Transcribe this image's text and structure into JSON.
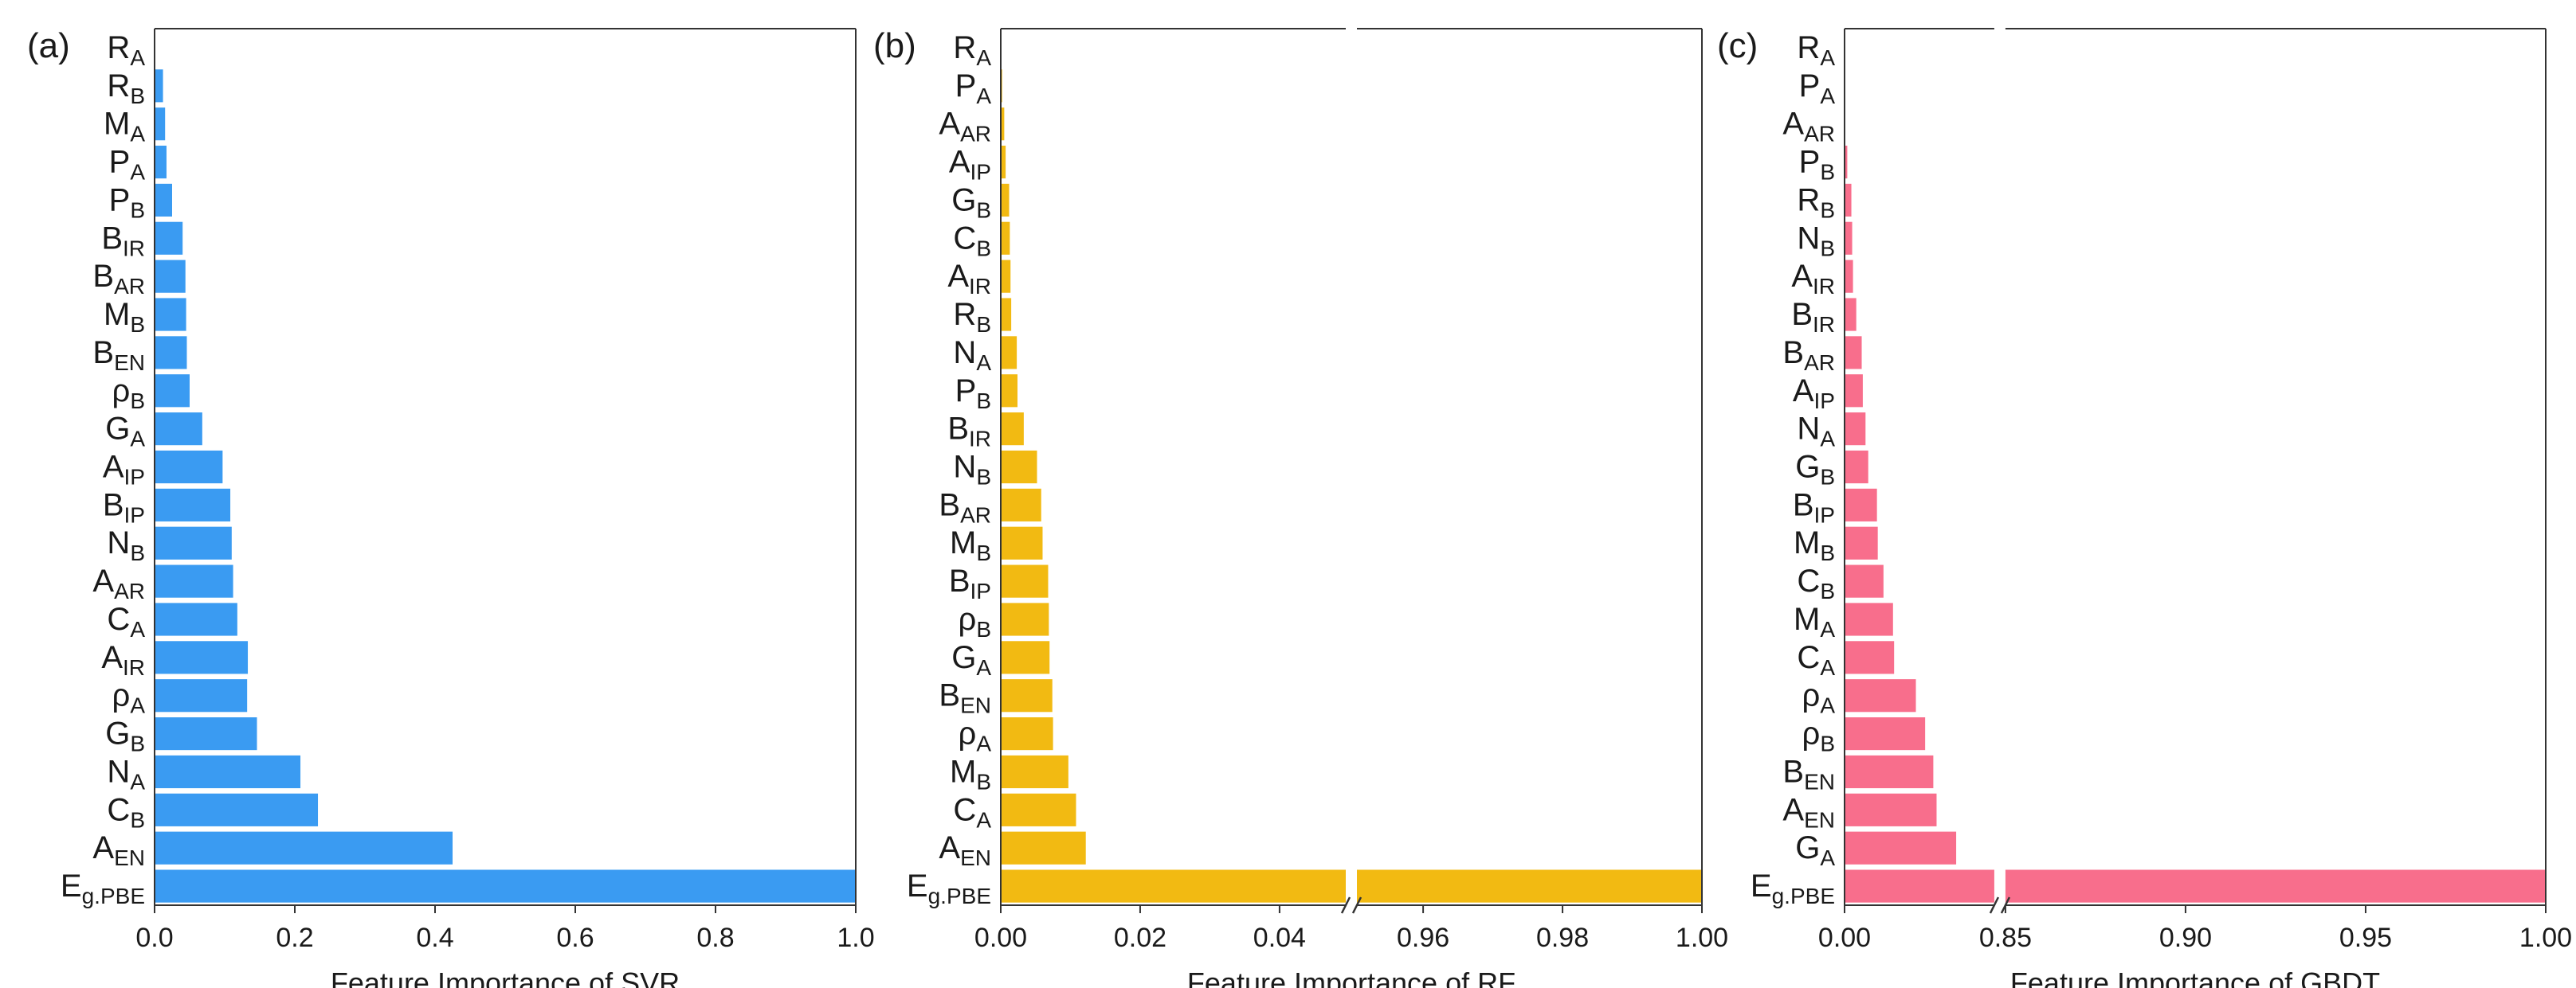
{
  "chart_data": [
    {
      "type": "bar",
      "orientation": "horizontal",
      "panel": "(a)",
      "xlabel": "Feature Importance of SVR",
      "color": "#3A9BF2",
      "categories": [
        {
          "base": "R",
          "sub": "A"
        },
        {
          "base": "R",
          "sub": "B"
        },
        {
          "base": "M",
          "sub": "A"
        },
        {
          "base": "P",
          "sub": "A"
        },
        {
          "base": "P",
          "sub": "B"
        },
        {
          "base": "B",
          "sub": "IR"
        },
        {
          "base": "B",
          "sub": "AR"
        },
        {
          "base": "M",
          "sub": "B"
        },
        {
          "base": "B",
          "sub": "EN"
        },
        {
          "base": "ρ",
          "sub": "B"
        },
        {
          "base": "G",
          "sub": "A"
        },
        {
          "base": "A",
          "sub": "IP"
        },
        {
          "base": "B",
          "sub": "IP"
        },
        {
          "base": "N",
          "sub": "B"
        },
        {
          "base": "A",
          "sub": "AR"
        },
        {
          "base": "C",
          "sub": "A"
        },
        {
          "base": "A",
          "sub": "IR"
        },
        {
          "base": "ρ",
          "sub": "A"
        },
        {
          "base": "G",
          "sub": "B"
        },
        {
          "base": "N",
          "sub": "A"
        },
        {
          "base": "C",
          "sub": "B"
        },
        {
          "base": "A",
          "sub": "EN"
        },
        {
          "base": "E",
          "sub": "g.PBE"
        }
      ],
      "values": [
        0.0,
        0.012,
        0.015,
        0.017,
        0.025,
        0.04,
        0.044,
        0.045,
        0.046,
        0.05,
        0.068,
        0.097,
        0.108,
        0.11,
        0.112,
        0.118,
        0.133,
        0.132,
        0.146,
        0.208,
        0.233,
        0.425,
        1.0
      ],
      "axis": {
        "segments": [
          {
            "lo": 0.0,
            "hi": 1.0,
            "frac": 1.0
          }
        ],
        "ticks": [
          {
            "v": 0.0,
            "label": "0.0"
          },
          {
            "v": 0.2,
            "label": "0.2"
          },
          {
            "v": 0.4,
            "label": "0.4"
          },
          {
            "v": 0.6,
            "label": "0.6"
          },
          {
            "v": 0.8,
            "label": "0.8"
          },
          {
            "v": 1.0,
            "label": "1.0"
          }
        ]
      }
    },
    {
      "type": "bar",
      "orientation": "horizontal",
      "panel": "(b)",
      "xlabel": "Feature Importance of RF",
      "color": "#F2BA12",
      "categories": [
        {
          "base": "R",
          "sub": "A"
        },
        {
          "base": "P",
          "sub": "A"
        },
        {
          "base": "A",
          "sub": "AR"
        },
        {
          "base": "A",
          "sub": "IP"
        },
        {
          "base": "G",
          "sub": "B"
        },
        {
          "base": "C",
          "sub": "B"
        },
        {
          "base": "A",
          "sub": "IR"
        },
        {
          "base": "R",
          "sub": "B"
        },
        {
          "base": "N",
          "sub": "A"
        },
        {
          "base": "P",
          "sub": "B"
        },
        {
          "base": "B",
          "sub": "IR"
        },
        {
          "base": "N",
          "sub": "B"
        },
        {
          "base": "B",
          "sub": "AR"
        },
        {
          "base": "M",
          "sub": "B"
        },
        {
          "base": "B",
          "sub": "IP"
        },
        {
          "base": "ρ",
          "sub": "B"
        },
        {
          "base": "G",
          "sub": "A"
        },
        {
          "base": "B",
          "sub": "EN"
        },
        {
          "base": "ρ",
          "sub": "A"
        },
        {
          "base": "M",
          "sub": "B"
        },
        {
          "base": "C",
          "sub": "A"
        },
        {
          "base": "A",
          "sub": "EN"
        },
        {
          "base": "E",
          "sub": "g.PBE"
        }
      ],
      "values": [
        0.0,
        0.0002,
        0.0005,
        0.0007,
        0.0012,
        0.0013,
        0.0014,
        0.0015,
        0.0023,
        0.0024,
        0.0033,
        0.0052,
        0.0058,
        0.006,
        0.0068,
        0.0069,
        0.007,
        0.0074,
        0.0075,
        0.0097,
        0.0108,
        0.0122,
        1.0
      ],
      "axis": {
        "segments": [
          {
            "lo": 0.0,
            "hi": 0.0495,
            "frac": 0.5
          },
          {
            "lo": 0.9505,
            "hi": 1.0,
            "frac": 0.5
          }
        ],
        "ticks": [
          {
            "v": 0.0,
            "label": "0.00"
          },
          {
            "v": 0.02,
            "label": "0.02"
          },
          {
            "v": 0.04,
            "label": "0.04"
          },
          {
            "v": 0.96,
            "label": "0.96"
          },
          {
            "v": 0.98,
            "label": "0.98"
          },
          {
            "v": 1.0,
            "label": "1.00"
          }
        ]
      }
    },
    {
      "type": "bar",
      "orientation": "horizontal",
      "panel": "(c)",
      "xlabel": "Feature Importance of GBDT",
      "color": "#F86E8C",
      "categories": [
        {
          "base": "R",
          "sub": "A"
        },
        {
          "base": "P",
          "sub": "A"
        },
        {
          "base": "A",
          "sub": "AR"
        },
        {
          "base": "P",
          "sub": "B"
        },
        {
          "base": "R",
          "sub": "B"
        },
        {
          "base": "N",
          "sub": "B"
        },
        {
          "base": "A",
          "sub": "IR"
        },
        {
          "base": "B",
          "sub": "IR"
        },
        {
          "base": "B",
          "sub": "AR"
        },
        {
          "base": "A",
          "sub": "IP"
        },
        {
          "base": "N",
          "sub": "A"
        },
        {
          "base": "G",
          "sub": "B"
        },
        {
          "base": "B",
          "sub": "IP"
        },
        {
          "base": "M",
          "sub": "B"
        },
        {
          "base": "C",
          "sub": "B"
        },
        {
          "base": "M",
          "sub": "A"
        },
        {
          "base": "C",
          "sub": "A"
        },
        {
          "base": "ρ",
          "sub": "A"
        },
        {
          "base": "ρ",
          "sub": "B"
        },
        {
          "base": "B",
          "sub": "EN"
        },
        {
          "base": "A",
          "sub": "EN"
        },
        {
          "base": "G",
          "sub": "A"
        },
        {
          "base": "E",
          "sub": "g.PBE"
        }
      ],
      "values": [
        0.0,
        0.0,
        0.0,
        0.001,
        0.0025,
        0.0028,
        0.0031,
        0.0043,
        0.0063,
        0.0067,
        0.0077,
        0.0087,
        0.0119,
        0.0122,
        0.0143,
        0.0178,
        0.0182,
        0.0262,
        0.0296,
        0.0326,
        0.0338,
        0.041,
        1.0
      ],
      "axis": {
        "segments": [
          {
            "lo": 0.0,
            "hi": 0.055,
            "frac": 0.217
          },
          {
            "lo": 0.85,
            "hi": 1.0,
            "frac": 0.783
          }
        ],
        "ticks": [
          {
            "v": 0.0,
            "label": "0.00"
          },
          {
            "v": 0.85,
            "label": "0.85"
          },
          {
            "v": 0.9,
            "label": "0.90"
          },
          {
            "v": 0.95,
            "label": "0.95"
          },
          {
            "v": 1.0,
            "label": "1.00"
          }
        ]
      }
    }
  ]
}
